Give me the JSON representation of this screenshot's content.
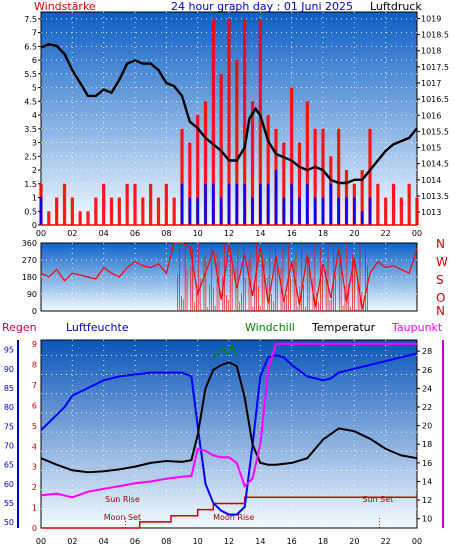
{
  "title": "24 hour graph day : 01 Juni 2025",
  "colors": {
    "axis": "#0000cc",
    "red": "#ff0000",
    "blue": "#0000ff",
    "black": "#000000",
    "green": "#008800",
    "magenta": "#ff00ff",
    "darkred": "#cc0000"
  },
  "chart_data": [
    {
      "type": "line",
      "panel": "wind-pressure",
      "title": "24 hour graph day : 01 Juni 2025",
      "left_label": "Windstärke",
      "right_label": "Luftdruck",
      "x_ticks": [
        "00",
        "02",
        "04",
        "06",
        "08",
        "10",
        "12",
        "14",
        "16",
        "18",
        "20",
        "22",
        "00"
      ],
      "left_ticks": [
        "0",
        "0.5",
        "1",
        "1.5",
        "2",
        "2.5",
        "3",
        "3.5",
        "4",
        "4.5",
        "5",
        "5.5",
        "6",
        "6.5",
        "7",
        "7.5"
      ],
      "right_ticks": [
        "1013",
        "1013.5",
        "1014",
        "1014.5",
        "1015",
        "1015.5",
        "1016",
        "1016.5",
        "1017",
        "1017.5",
        "1018",
        "1018.5",
        "1019"
      ],
      "xlim": [
        0,
        24
      ],
      "ylim_left": [
        0,
        7.75
      ],
      "ylim_right": [
        1012.6,
        1019.2
      ],
      "series": [
        {
          "name": "Luftdruck",
          "color": "#000000",
          "x": [
            0,
            0.5,
            1,
            1.5,
            2,
            2.5,
            3,
            3.5,
            4,
            4.5,
            5,
            5.5,
            6,
            6.5,
            7,
            7.5,
            8,
            8.5,
            9,
            9.5,
            10,
            10.5,
            11,
            11.5,
            12,
            12.5,
            13,
            13.3,
            13.7,
            14,
            14.5,
            15,
            15.5,
            16,
            16.5,
            17,
            17.5,
            18,
            18.5,
            19,
            19.5,
            20,
            20.5,
            21,
            21.5,
            22,
            22.5,
            23,
            23.5,
            24
          ],
          "y": [
            1018.1,
            1018.2,
            1018.15,
            1017.9,
            1017.4,
            1017.0,
            1016.6,
            1016.6,
            1016.8,
            1016.7,
            1017.1,
            1017.6,
            1017.7,
            1017.6,
            1017.6,
            1017.4,
            1017.0,
            1016.9,
            1016.6,
            1015.8,
            1015.6,
            1015.3,
            1015.1,
            1014.9,
            1014.6,
            1014.6,
            1015.0,
            1015.9,
            1016.2,
            1016.0,
            1015.2,
            1014.8,
            1014.7,
            1014.6,
            1014.4,
            1014.3,
            1014.4,
            1014.3,
            1014.0,
            1013.9,
            1013.9,
            1014.0,
            1014.0,
            1014.3,
            1014.6,
            1014.9,
            1015.1,
            1015.2,
            1015.3,
            1015.6
          ]
        },
        {
          "name": "Windböen",
          "color": "#ff0000",
          "x": [
            0,
            0.5,
            1,
            1.5,
            2,
            2.5,
            3,
            3.5,
            4,
            4.5,
            5,
            5.5,
            6,
            6.5,
            7,
            7.5,
            8,
            8.5,
            9,
            9.5,
            10,
            10.5,
            11,
            11.5,
            12,
            12.5,
            13,
            13.5,
            14,
            14.5,
            15,
            15.5,
            16,
            16.5,
            17,
            17.5,
            18,
            18.5,
            19,
            19.5,
            20,
            20.5,
            21,
            21.5,
            22,
            22.5,
            23,
            23.5,
            24
          ],
          "y": [
            1.5,
            0.5,
            1,
            1.5,
            1,
            0.5,
            0.5,
            1,
            1.5,
            1,
            1,
            1.5,
            1.5,
            1,
            1.5,
            1,
            1.5,
            1,
            3.5,
            3,
            4,
            4.5,
            7.5,
            5.5,
            7.5,
            6,
            7.5,
            4.5,
            7.5,
            4,
            3.5,
            3,
            5,
            3,
            4.5,
            3.5,
            3.5,
            2.5,
            3.5,
            2,
            1.5,
            2,
            3.5,
            1.5,
            1,
            1.5,
            1,
            1.5,
            1
          ]
        },
        {
          "name": "Windstärke",
          "color": "#0000ff",
          "x": [
            0,
            0.5,
            1,
            1.5,
            2,
            2.5,
            3,
            3.5,
            4,
            4.5,
            5,
            5.5,
            6,
            6.5,
            7,
            7.5,
            8,
            8.5,
            9,
            9.5,
            10,
            10.5,
            11,
            11.5,
            12,
            12.5,
            13,
            13.5,
            14,
            14.5,
            15,
            15.5,
            16,
            16.5,
            17,
            17.5,
            18,
            18.5,
            19,
            19.5,
            20,
            20.5,
            21,
            21.5,
            22,
            22.5,
            23,
            23.5,
            24
          ],
          "y": [
            1,
            0,
            0,
            0,
            0,
            0,
            0,
            0,
            0,
            0,
            0,
            0,
            0,
            0,
            0,
            0,
            0,
            0,
            1.5,
            1,
            1,
            1.5,
            1.5,
            1,
            1.5,
            1.5,
            1.5,
            1,
            1.5,
            1.5,
            2,
            1,
            1.5,
            1,
            1.5,
            1,
            1,
            1.5,
            1,
            1,
            1,
            0.5,
            1,
            0,
            0,
            0,
            0,
            0,
            0
          ]
        }
      ]
    },
    {
      "type": "line",
      "panel": "wind-direction",
      "left_ticks": [
        "0",
        "90",
        "180",
        "270",
        "360"
      ],
      "right_labels": [
        "N",
        "W",
        "S",
        "O",
        "N"
      ],
      "xlim": [
        0,
        24
      ],
      "ylim": [
        0,
        360
      ],
      "series": [
        {
          "name": "Windrichtung",
          "color": "#ff0000",
          "x": [
            0,
            0.5,
            1,
            1.5,
            2,
            2.5,
            3,
            3.5,
            4,
            4.5,
            5,
            5.5,
            6,
            6.5,
            7,
            7.5,
            8,
            8.5,
            9,
            9.5,
            10,
            10.5,
            11,
            11.5,
            12,
            12.5,
            13,
            13.5,
            14,
            14.5,
            15,
            15.5,
            16,
            16.5,
            17,
            17.5,
            18,
            18.5,
            19,
            19.5,
            20,
            20.5,
            21,
            21.5,
            22,
            22.5,
            23,
            23.5,
            24
          ],
          "y": [
            200,
            180,
            220,
            160,
            200,
            190,
            180,
            170,
            230,
            200,
            180,
            230,
            260,
            240,
            230,
            250,
            200,
            360,
            360,
            340,
            90,
            200,
            320,
            60,
            350,
            120,
            300,
            80,
            340,
            40,
            290,
            50,
            260,
            30,
            300,
            20,
            250,
            70,
            330,
            50,
            280,
            10,
            200,
            260,
            230,
            240,
            220,
            200,
            330
          ]
        }
      ]
    },
    {
      "type": "line",
      "panel": "humidity-temperature",
      "labels": {
        "rain": "Regen",
        "humidity": "Luftfeuchte",
        "windchill": "Windchill",
        "temperature": "Temperatur",
        "dewpoint": "Taupunkt"
      },
      "humidity_ticks": [
        "50",
        "55",
        "60",
        "65",
        "70",
        "75",
        "80",
        "85",
        "90",
        "95"
      ],
      "rain_ticks": [
        "0",
        "1",
        "2",
        "3",
        "4",
        "5",
        "6",
        "7",
        "8",
        "9"
      ],
      "temp_ticks": [
        "10",
        "12",
        "14",
        "16",
        "18",
        "20",
        "22",
        "24",
        "26",
        "28"
      ],
      "x_ticks": [
        "00",
        "02",
        "04",
        "06",
        "08",
        "10",
        "12",
        "14",
        "16",
        "18",
        "20",
        "22",
        "00"
      ],
      "xlim": [
        0,
        24
      ],
      "humidity_lim": [
        48.5,
        97.5
      ],
      "temp_lim": [
        9.0,
        29.2
      ],
      "annotations": [
        {
          "text": "Moon Set",
          "x": 5.2,
          "row": "lower"
        },
        {
          "text": "Sun Rise",
          "x": 5.2,
          "row": "upper"
        },
        {
          "text": "Moon Rise",
          "x": 12.3,
          "row": "lower"
        },
        {
          "text": "Sun Set",
          "x": 21.5,
          "row": "upper"
        }
      ],
      "series": [
        {
          "name": "Luftfeuchte",
          "color": "#0000ff",
          "axis": "humidity",
          "x": [
            0,
            1,
            1.5,
            2,
            3,
            4,
            5,
            6,
            7,
            8,
            9,
            9.6,
            10,
            10.5,
            11,
            11.5,
            12,
            12.5,
            13,
            13.5,
            14,
            14.5,
            15,
            15.5,
            16,
            17,
            18,
            18.5,
            19,
            20,
            21,
            22,
            23,
            24
          ],
          "y": [
            74,
            78,
            80,
            83,
            85,
            87,
            88,
            88.5,
            89,
            89,
            89,
            88,
            75,
            60,
            55,
            53,
            52,
            52,
            54,
            70,
            88,
            93,
            93.5,
            93,
            91,
            88,
            87,
            87.5,
            89,
            90,
            91,
            92,
            93,
            94
          ]
        },
        {
          "name": "Temperatur",
          "color": "#000000",
          "axis": "temp",
          "x": [
            0,
            1,
            2,
            3,
            4,
            5,
            6,
            7,
            8,
            9,
            9.6,
            10,
            10.5,
            11,
            11.5,
            12,
            12.5,
            13,
            13.5,
            14,
            14.5,
            15,
            16,
            17,
            18,
            19,
            20,
            21,
            22,
            23,
            24
          ],
          "y": [
            16.5,
            15.8,
            15.2,
            15.0,
            15.1,
            15.3,
            15.6,
            16.0,
            16.2,
            16.1,
            16.3,
            19.0,
            24.0,
            26.0,
            26.5,
            26.8,
            26.4,
            23.0,
            18.0,
            16.0,
            15.8,
            15.8,
            16.0,
            16.5,
            18.5,
            19.7,
            19.4,
            18.6,
            17.5,
            16.8,
            16.5
          ]
        },
        {
          "name": "Windchill",
          "color": "#008800",
          "axis": "temp",
          "x": [
            11,
            11.3,
            11.6,
            11.9,
            12.2,
            12.5
          ],
          "y": [
            27.2,
            27.8,
            28.4,
            27.6,
            28.6,
            27.4
          ]
        },
        {
          "name": "Taupunkt",
          "color": "#ff00ff",
          "axis": "temp",
          "x": [
            0,
            1,
            2,
            3,
            4,
            5,
            6,
            7,
            8,
            9,
            9.6,
            10,
            10.5,
            11,
            11.5,
            12,
            12.5,
            13,
            13.5,
            14,
            14.5,
            15,
            16,
            17,
            18,
            19,
            20,
            21,
            22,
            23,
            24
          ],
          "y": [
            12.5,
            12.7,
            12.3,
            12.9,
            13.2,
            13.5,
            13.8,
            14.0,
            14.3,
            14.5,
            14.6,
            17.5,
            17.3,
            16.8,
            16.6,
            16.6,
            16.0,
            13.5,
            14.3,
            18.0,
            26.0,
            28.8,
            28.8,
            28.8,
            28.8,
            28.8,
            28.8,
            28.8,
            28.8,
            28.8,
            28.8
          ]
        }
      ],
      "rain_steps": {
        "color": "#cc0000",
        "x": [
          0,
          6.3,
          8.3,
          10,
          11,
          13,
          24
        ],
        "y": [
          0,
          0.3,
          0.6,
          0.9,
          1.2,
          1.5,
          1.5
        ]
      }
    }
  ]
}
